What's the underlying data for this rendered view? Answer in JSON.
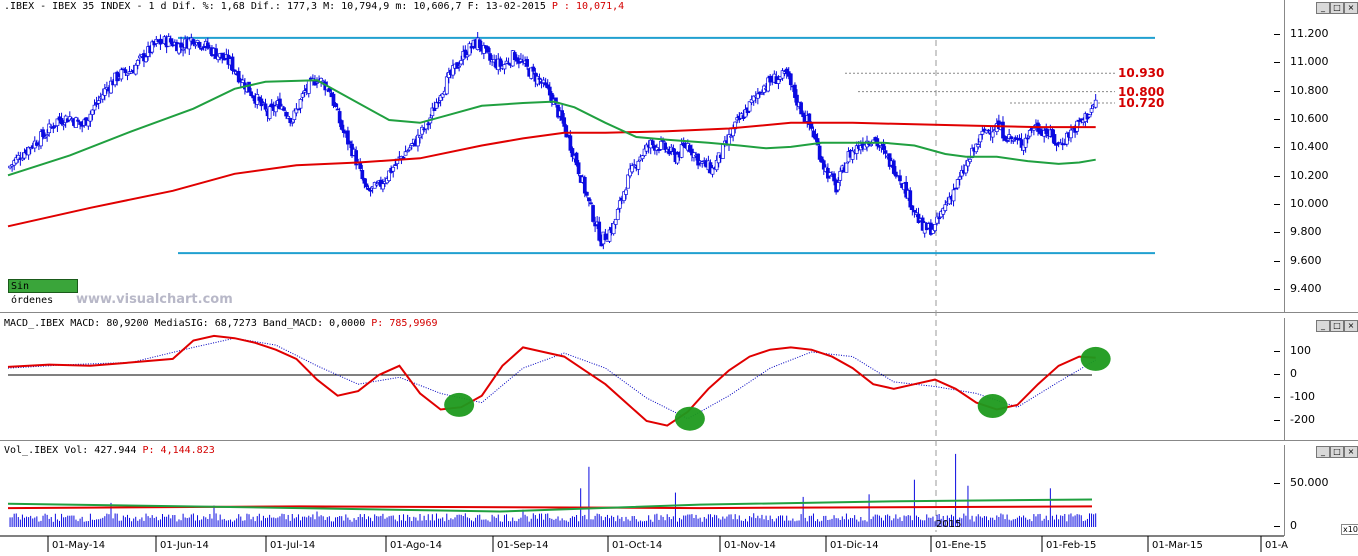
{
  "main_header": {
    "text": ".IBEX - IBEX 35 INDEX -  1 d Dif. %: 1,68 Dif.: 177,3 M: 10,794,9 m: 10,606,7 F: 13-02-2015",
    "p_value": "P : 10,071,4"
  },
  "macd_header": {
    "text": "MACD_.IBEX MACD: 80,9200 MediaSIG: 68,7273 Band_MACD: 0,0000",
    "p_value": "P: 785,9969"
  },
  "vol_header": {
    "text": "Vol_.IBEX Vol: 427.944",
    "p_value": "P: 4,144.823"
  },
  "watermark": "www.visualchart.com",
  "status_badge": "Sin órdenes",
  "year_marker": "2015",
  "axis_multiplier": "x10",
  "window_buttons": [
    "_",
    "□",
    "×"
  ],
  "colors": {
    "bull": "#ffffff",
    "bear": "#0a0ae0",
    "sma_long": "#e00000",
    "sma_short": "#20a040",
    "channel": "#20a0d0",
    "macd": "#e00000",
    "signal": "#0000c0",
    "highlight": "#1e9a1e",
    "vol_bar": "#0a0ae0"
  },
  "chart_data": [
    {
      "type": "candlestick",
      "title": ".IBEX - IBEX 35 INDEX",
      "y_ticks": [
        "11.200",
        "11.000",
        "10.800",
        "10.600",
        "10.400",
        "10.200",
        "10.000",
        "9.800",
        "9.600",
        "9.400"
      ],
      "ylim": [
        9300,
        11330
      ],
      "x_labels": [
        "01-May-14",
        "01-Jun-14",
        "01-Jul-14",
        "01-Ago-14",
        "01-Sep-14",
        "01-Oct-14",
        "01-Nov-14",
        "01-Dic-14",
        "01-Ene-15",
        "01-Feb-15",
        "01-Mar-15",
        "01-A"
      ],
      "levels": [
        {
          "label": "10.930",
          "value": 10930
        },
        {
          "label": "10.800",
          "value": 10800
        },
        {
          "label": "10.720",
          "value": 10720
        }
      ],
      "channel": [
        11180,
        9660
      ],
      "close_path": [
        [
          0,
          10260
        ],
        [
          6,
          10350
        ],
        [
          12,
          10430
        ],
        [
          18,
          10500
        ],
        [
          24,
          10600
        ],
        [
          30,
          10620
        ],
        [
          36,
          10560
        ],
        [
          42,
          10690
        ],
        [
          48,
          10830
        ],
        [
          54,
          10920
        ],
        [
          60,
          10950
        ],
        [
          66,
          11050
        ],
        [
          72,
          11140
        ],
        [
          78,
          11160
        ],
        [
          84,
          11120
        ],
        [
          90,
          11180
        ],
        [
          96,
          11120
        ],
        [
          102,
          11060
        ],
        [
          108,
          11000
        ],
        [
          114,
          10870
        ],
        [
          120,
          10760
        ],
        [
          126,
          10640
        ],
        [
          132,
          10720
        ],
        [
          138,
          10600
        ],
        [
          144,
          10800
        ],
        [
          150,
          10900
        ],
        [
          156,
          10820
        ],
        [
          162,
          10540
        ],
        [
          168,
          10360
        ],
        [
          174,
          10090
        ],
        [
          180,
          10130
        ],
        [
          186,
          10250
        ],
        [
          192,
          10360
        ],
        [
          198,
          10450
        ],
        [
          204,
          10580
        ],
        [
          210,
          10800
        ],
        [
          216,
          10940
        ],
        [
          222,
          11080
        ],
        [
          228,
          11150
        ],
        [
          234,
          11020
        ],
        [
          240,
          10980
        ],
        [
          246,
          11060
        ],
        [
          252,
          10960
        ],
        [
          258,
          10880
        ],
        [
          264,
          10760
        ],
        [
          270,
          10550
        ],
        [
          276,
          10300
        ],
        [
          282,
          10010
        ],
        [
          288,
          9750
        ],
        [
          294,
          9850
        ],
        [
          300,
          10150
        ],
        [
          306,
          10330
        ],
        [
          312,
          10430
        ],
        [
          318,
          10410
        ],
        [
          324,
          10340
        ],
        [
          330,
          10430
        ],
        [
          336,
          10300
        ],
        [
          342,
          10250
        ],
        [
          348,
          10410
        ],
        [
          354,
          10580
        ],
        [
          360,
          10700
        ],
        [
          366,
          10830
        ],
        [
          372,
          10890
        ],
        [
          378,
          10910
        ],
        [
          384,
          10700
        ],
        [
          390,
          10540
        ],
        [
          396,
          10280
        ],
        [
          402,
          10120
        ],
        [
          408,
          10350
        ],
        [
          414,
          10430
        ],
        [
          420,
          10480
        ],
        [
          426,
          10340
        ],
        [
          432,
          10230
        ],
        [
          438,
          10030
        ],
        [
          444,
          9830
        ],
        [
          450,
          9840
        ],
        [
          456,
          10030
        ],
        [
          462,
          10180
        ],
        [
          468,
          10360
        ],
        [
          474,
          10520
        ],
        [
          480,
          10560
        ],
        [
          486,
          10470
        ],
        [
          492,
          10430
        ],
        [
          498,
          10560
        ],
        [
          504,
          10520
        ],
        [
          510,
          10420
        ],
        [
          516,
          10520
        ],
        [
          522,
          10600
        ],
        [
          528,
          10720
        ]
      ],
      "sma_short": [
        [
          0,
          10210
        ],
        [
          30,
          10350
        ],
        [
          60,
          10520
        ],
        [
          90,
          10680
        ],
        [
          110,
          10820
        ],
        [
          125,
          10870
        ],
        [
          150,
          10880
        ],
        [
          170,
          10720
        ],
        [
          185,
          10600
        ],
        [
          200,
          10580
        ],
        [
          215,
          10640
        ],
        [
          230,
          10700
        ],
        [
          250,
          10720
        ],
        [
          265,
          10730
        ],
        [
          275,
          10690
        ],
        [
          290,
          10580
        ],
        [
          305,
          10480
        ],
        [
          320,
          10460
        ],
        [
          340,
          10440
        ],
        [
          355,
          10420
        ],
        [
          368,
          10400
        ],
        [
          380,
          10410
        ],
        [
          395,
          10440
        ],
        [
          410,
          10440
        ],
        [
          425,
          10440
        ],
        [
          440,
          10420
        ],
        [
          455,
          10360
        ],
        [
          465,
          10340
        ],
        [
          480,
          10340
        ],
        [
          495,
          10310
        ],
        [
          510,
          10290
        ],
        [
          520,
          10300
        ],
        [
          528,
          10320
        ]
      ],
      "sma_long": [
        [
          0,
          9850
        ],
        [
          40,
          9980
        ],
        [
          80,
          10100
        ],
        [
          110,
          10220
        ],
        [
          140,
          10280
        ],
        [
          170,
          10300
        ],
        [
          200,
          10330
        ],
        [
          230,
          10420
        ],
        [
          250,
          10470
        ],
        [
          270,
          10510
        ],
        [
          290,
          10510
        ],
        [
          320,
          10520
        ],
        [
          350,
          10540
        ],
        [
          380,
          10580
        ],
        [
          410,
          10580
        ],
        [
          440,
          10570
        ],
        [
          470,
          10560
        ],
        [
          500,
          10550
        ],
        [
          528,
          10550
        ]
      ],
      "volume_ylim": [
        0,
        90
      ],
      "volume_ticks": [
        "50.000",
        "0"
      ],
      "volume_spikes": [
        [
          50,
          28
        ],
        [
          100,
          25
        ],
        [
          150,
          18
        ],
        [
          250,
          20
        ],
        [
          278,
          45
        ],
        [
          282,
          70
        ],
        [
          324,
          40
        ],
        [
          386,
          35
        ],
        [
          418,
          38
        ],
        [
          440,
          55
        ],
        [
          460,
          85
        ],
        [
          466,
          48
        ],
        [
          506,
          45
        ]
      ]
    },
    {
      "type": "line",
      "title": "MACD",
      "ylim": [
        -260,
        180
      ],
      "y_ticks": [
        "100",
        "0",
        "-100",
        "-200"
      ],
      "macd": [
        [
          0,
          35
        ],
        [
          20,
          45
        ],
        [
          40,
          40
        ],
        [
          60,
          55
        ],
        [
          80,
          70
        ],
        [
          90,
          150
        ],
        [
          100,
          170
        ],
        [
          110,
          160
        ],
        [
          120,
          140
        ],
        [
          130,
          110
        ],
        [
          140,
          70
        ],
        [
          150,
          -20
        ],
        [
          160,
          -90
        ],
        [
          170,
          -70
        ],
        [
          180,
          0
        ],
        [
          190,
          40
        ],
        [
          200,
          -80
        ],
        [
          210,
          -150
        ],
        [
          220,
          -140
        ],
        [
          230,
          -90
        ],
        [
          240,
          40
        ],
        [
          250,
          120
        ],
        [
          260,
          100
        ],
        [
          270,
          80
        ],
        [
          280,
          20
        ],
        [
          290,
          -40
        ],
        [
          300,
          -120
        ],
        [
          310,
          -200
        ],
        [
          320,
          -220
        ],
        [
          330,
          -160
        ],
        [
          340,
          -60
        ],
        [
          350,
          20
        ],
        [
          360,
          80
        ],
        [
          370,
          110
        ],
        [
          380,
          120
        ],
        [
          390,
          110
        ],
        [
          400,
          80
        ],
        [
          410,
          30
        ],
        [
          420,
          -40
        ],
        [
          430,
          -60
        ],
        [
          440,
          -40
        ],
        [
          450,
          -20
        ],
        [
          460,
          -60
        ],
        [
          470,
          -120
        ],
        [
          480,
          -150
        ],
        [
          490,
          -130
        ],
        [
          500,
          -40
        ],
        [
          510,
          40
        ],
        [
          520,
          80
        ],
        [
          528,
          75
        ]
      ],
      "signal": [
        [
          0,
          30
        ],
        [
          30,
          45
        ],
        [
          60,
          55
        ],
        [
          90,
          120
        ],
        [
          110,
          160
        ],
        [
          130,
          130
        ],
        [
          150,
          40
        ],
        [
          170,
          -40
        ],
        [
          190,
          -10
        ],
        [
          210,
          -80
        ],
        [
          230,
          -120
        ],
        [
          250,
          30
        ],
        [
          270,
          95
        ],
        [
          290,
          30
        ],
        [
          310,
          -100
        ],
        [
          330,
          -190
        ],
        [
          350,
          -90
        ],
        [
          370,
          30
        ],
        [
          390,
          100
        ],
        [
          410,
          80
        ],
        [
          430,
          -30
        ],
        [
          450,
          -50
        ],
        [
          470,
          -80
        ],
        [
          490,
          -140
        ],
        [
          510,
          -30
        ],
        [
          528,
          65
        ]
      ],
      "highlights": [
        [
          219,
          -130
        ],
        [
          331,
          -190
        ],
        [
          478,
          -135
        ],
        [
          528,
          70
        ]
      ]
    }
  ]
}
